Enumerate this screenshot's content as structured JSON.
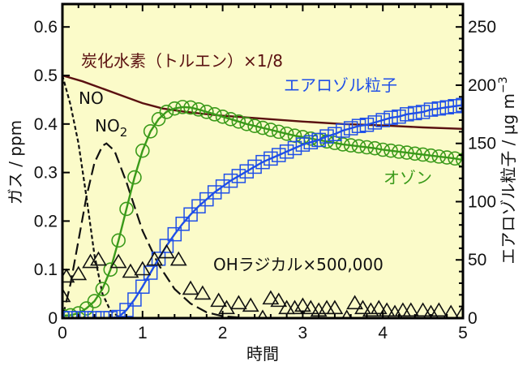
{
  "chart_data": {
    "type": "line",
    "title": "",
    "xlabel": "時間",
    "ylabel": "ガス / ppm",
    "y2label": "エアロゾル粒子 / μg m⁻³",
    "xlim": [
      0,
      5
    ],
    "ylim": [
      0,
      0.65
    ],
    "y2lim": [
      0,
      270
    ],
    "x_ticks": [
      "0",
      "1",
      "2",
      "3",
      "4",
      "5"
    ],
    "y_ticks": [
      "0",
      "0.1",
      "0.2",
      "0.3",
      "0.4",
      "0.5",
      "0.6"
    ],
    "y2_ticks": [
      "0",
      "50",
      "100",
      "150",
      "200",
      "250"
    ],
    "grid": false,
    "background": "#fbfbc9",
    "series": [
      {
        "name": "炭化水素（トルエン）×1/8",
        "axis": "left",
        "style": "solid",
        "color": "#5a1010",
        "x": [
          0,
          0.25,
          0.5,
          0.75,
          1.0,
          1.25,
          1.5,
          1.75,
          2.0,
          2.5,
          3.0,
          3.5,
          4.0,
          4.5,
          5.0
        ],
        "values": [
          0.5,
          0.488,
          0.473,
          0.458,
          0.443,
          0.432,
          0.426,
          0.421,
          0.417,
          0.411,
          0.405,
          0.4,
          0.397,
          0.393,
          0.39
        ]
      },
      {
        "name": "NO",
        "axis": "left",
        "style": "short-dash",
        "color": "#111111",
        "x": [
          0,
          0.1,
          0.2,
          0.3,
          0.4,
          0.5,
          0.6,
          0.7,
          0.8
        ],
        "values": [
          0.5,
          0.44,
          0.36,
          0.25,
          0.13,
          0.05,
          0.015,
          0.003,
          0.0
        ]
      },
      {
        "name": "NO2",
        "axis": "left",
        "style": "long-dash",
        "color": "#111111",
        "x": [
          0,
          0.1,
          0.2,
          0.3,
          0.4,
          0.5,
          0.55,
          0.65,
          0.8,
          1.0,
          1.2,
          1.4,
          1.6,
          1.8,
          2.0,
          2.3
        ],
        "values": [
          0.0,
          0.07,
          0.16,
          0.25,
          0.32,
          0.355,
          0.36,
          0.345,
          0.28,
          0.18,
          0.11,
          0.06,
          0.03,
          0.012,
          0.004,
          0.0
        ]
      },
      {
        "name": "オゾン",
        "axis": "left",
        "style": "solid-circle",
        "color": "#3a9a1a",
        "x": [
          0,
          0.1,
          0.2,
          0.3,
          0.4,
          0.5,
          0.6,
          0.7,
          0.8,
          0.9,
          1.0,
          1.1,
          1.2,
          1.3,
          1.4,
          1.5,
          1.6,
          1.7,
          1.8,
          1.9,
          2.0,
          2.1,
          2.2,
          2.3,
          2.4,
          2.5,
          2.6,
          2.7,
          2.8,
          2.9,
          3.0,
          3.1,
          3.2,
          3.3,
          3.4,
          3.5,
          3.6,
          3.7,
          3.8,
          3.9,
          4.0,
          4.1,
          4.2,
          4.3,
          4.4,
          4.5,
          4.6,
          4.7,
          4.8,
          4.9,
          5.0
        ],
        "values": [
          0.005,
          0.006,
          0.01,
          0.02,
          0.035,
          0.06,
          0.1,
          0.16,
          0.225,
          0.29,
          0.345,
          0.385,
          0.41,
          0.425,
          0.432,
          0.435,
          0.434,
          0.43,
          0.425,
          0.42,
          0.415,
          0.41,
          0.405,
          0.4,
          0.396,
          0.392,
          0.388,
          0.384,
          0.38,
          0.376,
          0.373,
          0.37,
          0.367,
          0.364,
          0.361,
          0.358,
          0.356,
          0.354,
          0.352,
          0.35,
          0.347,
          0.345,
          0.343,
          0.341,
          0.339,
          0.337,
          0.335,
          0.333,
          0.331,
          0.329,
          0.326
        ]
      },
      {
        "name": "エアロゾル粒子",
        "axis": "right",
        "style": "solid-square",
        "color": "#1f4fe8",
        "x": [
          0,
          0.1,
          0.2,
          0.3,
          0.4,
          0.5,
          0.6,
          0.7,
          0.8,
          0.9,
          1.0,
          1.1,
          1.2,
          1.3,
          1.4,
          1.5,
          1.6,
          1.7,
          1.8,
          1.9,
          2.0,
          2.1,
          2.2,
          2.3,
          2.4,
          2.5,
          2.6,
          2.7,
          2.8,
          2.9,
          3.0,
          3.1,
          3.2,
          3.3,
          3.4,
          3.5,
          3.6,
          3.7,
          3.8,
          3.9,
          4.0,
          4.1,
          4.2,
          4.3,
          4.4,
          4.5,
          4.6,
          4.7,
          4.8,
          4.9,
          5.0
        ],
        "values": [
          0,
          0,
          0,
          0,
          0,
          0,
          0,
          1,
          7,
          16,
          27,
          39,
          51,
          62,
          72,
          81,
          89,
          96,
          102,
          108,
          113,
          118,
          122,
          126,
          130,
          134,
          137,
          140,
          143,
          146,
          149,
          151,
          153,
          156,
          158,
          161,
          163,
          165,
          166,
          168,
          170,
          172,
          173,
          175,
          176,
          177,
          179,
          180,
          181,
          182,
          183
        ]
      },
      {
        "name": "OHラジカル×500,000",
        "axis": "left",
        "style": "triangle",
        "color": "#111111",
        "x": [
          0.0,
          0.05,
          0.2,
          0.35,
          0.45,
          0.7,
          0.85,
          1.0,
          1.15,
          1.3,
          1.45,
          1.6,
          1.75,
          1.95,
          2.05,
          2.2,
          2.35,
          2.5,
          2.6,
          2.7,
          2.8,
          2.9,
          3.0,
          3.1,
          3.2,
          3.3,
          3.4,
          3.55,
          3.65,
          3.75,
          3.85,
          3.95,
          4.05,
          4.15,
          4.25,
          4.35,
          4.5,
          4.6,
          4.7,
          4.85,
          5.0
        ],
        "values": [
          0.045,
          0.085,
          0.09,
          0.115,
          0.12,
          0.115,
          0.095,
          0.1,
          0.12,
          0.135,
          0.12,
          0.06,
          0.05,
          0.035,
          0.02,
          0.03,
          0.025,
          0.0,
          0.04,
          0.035,
          0.02,
          0.02,
          0.025,
          0.02,
          0.015,
          0.02,
          0.02,
          0.0,
          0.03,
          0.02,
          0.015,
          0.02,
          0.015,
          0.01,
          0.015,
          0.015,
          0.015,
          0.01,
          0.015,
          0.01,
          0.01
        ]
      }
    ],
    "annotations": [
      {
        "text": "炭化水素（トルエン）×1/8",
        "color": "#5a1010"
      },
      {
        "text": "NO",
        "color": "#111111"
      },
      {
        "text": "NO2",
        "color": "#111111"
      },
      {
        "text": "エアロゾル粒子",
        "color": "#1f4fe8"
      },
      {
        "text": "オゾン",
        "color": "#3a9a1a"
      },
      {
        "text": "OHラジカル×500,000",
        "color": "#111111"
      }
    ]
  },
  "labels": {
    "hydrocarbon": "炭化水素（トルエン）×1/8",
    "no": "NO",
    "no2_main": "NO",
    "no2_sub": "2",
    "aerosol": "エアロゾル粒子",
    "ozone": "オゾン",
    "oh": "OHラジカル×500,000",
    "xlabel": "時間",
    "ylabel": "ガス / ppm",
    "y2label_main": "エアロゾル粒子 / μg m",
    "y2label_sup": "−3"
  }
}
